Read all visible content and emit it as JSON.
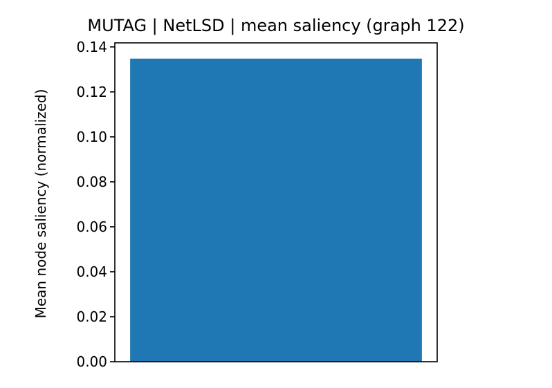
{
  "chart_data": {
    "type": "bar",
    "title": "MUTAG | NetLSD | mean saliency (graph 122)",
    "xlabel": "",
    "ylabel": "Mean node saliency (normalized)",
    "categories": [
      ""
    ],
    "values": [
      0.1348
    ],
    "ylim": [
      0,
      0.1418
    ],
    "yticks": [
      "0.00",
      "0.02",
      "0.04",
      "0.06",
      "0.08",
      "0.10",
      "0.12",
      "0.14"
    ],
    "bar_color": "#1f77b4",
    "grid": false,
    "legend": false
  }
}
